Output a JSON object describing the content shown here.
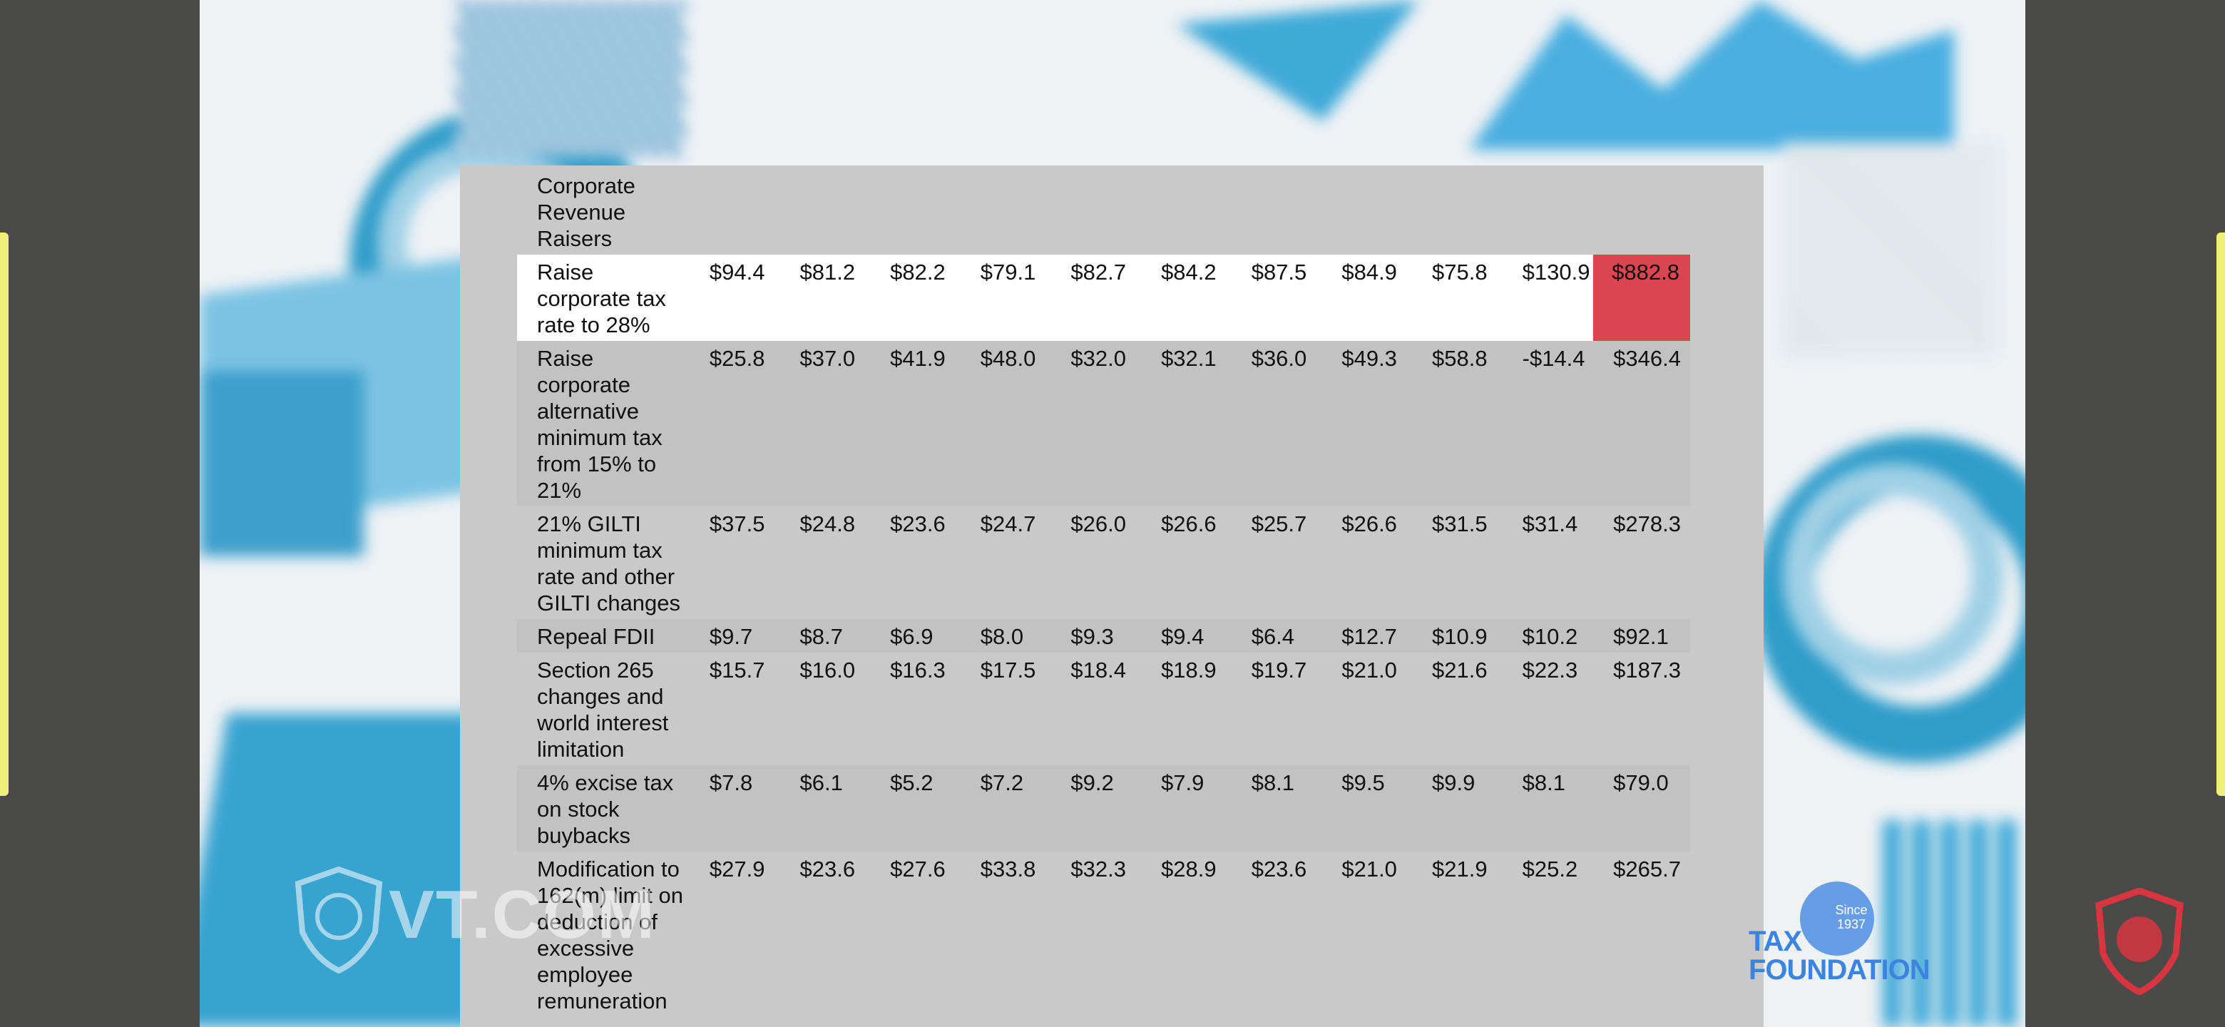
{
  "table": {
    "rows": [
      {
        "label": "Corporate Revenue Raisers",
        "values": [
          "",
          "",
          "",
          "",
          "",
          "",
          "",
          "",
          "",
          "",
          ""
        ]
      },
      {
        "label": "Raise corporate tax rate to 28%",
        "values": [
          "$94.4",
          "$81.2",
          "$82.2",
          "$79.1",
          "$82.7",
          "$84.2",
          "$87.5",
          "$84.9",
          "$75.8",
          "$130.9",
          "$882.8"
        ]
      },
      {
        "label": "Raise corporate alternative minimum tax from 15% to 21%",
        "values": [
          "$25.8",
          "$37.0",
          "$41.9",
          "$48.0",
          "$32.0",
          "$32.1",
          "$36.0",
          "$49.3",
          "$58.8",
          "-$14.4",
          "$346.4"
        ]
      },
      {
        "label": "21% GILTI minimum tax rate and other GILTI changes",
        "values": [
          "$37.5",
          "$24.8",
          "$23.6",
          "$24.7",
          "$26.0",
          "$26.6",
          "$25.7",
          "$26.6",
          "$31.5",
          "$31.4",
          "$278.3"
        ]
      },
      {
        "label": "Repeal FDII",
        "values": [
          "$9.7",
          "$8.7",
          "$6.9",
          "$8.0",
          "$9.3",
          "$9.4",
          "$6.4",
          "$12.7",
          "$10.9",
          "$10.2",
          "$92.1"
        ]
      },
      {
        "label": "Section 265 changes and world interest limitation",
        "values": [
          "$15.7",
          "$16.0",
          "$16.3",
          "$17.5",
          "$18.4",
          "$18.9",
          "$19.7",
          "$21.0",
          "$21.6",
          "$22.3",
          "$187.3"
        ]
      },
      {
        "label": "4% excise tax on stock buybacks",
        "values": [
          "$7.8",
          "$6.1",
          "$5.2",
          "$7.2",
          "$9.2",
          "$7.9",
          "$8.1",
          "$9.5",
          "$9.9",
          "$8.1",
          "$79.0"
        ]
      },
      {
        "label": "Modification to 162(m) limit on deduction of excessive employee remuneration",
        "values": [
          "$27.9",
          "$23.6",
          "$27.6",
          "$33.8",
          "$32.3",
          "$28.9",
          "$23.6",
          "$21.0",
          "$21.9",
          "$25.2",
          "$265.7"
        ]
      }
    ],
    "highlight_color": "#d9464f"
  },
  "watermarks": {
    "vt_text": "VT.COM",
    "tax_foundation_line1": "TAX",
    "tax_foundation_line2": "FOUNDATION",
    "since_line1": "Since",
    "since_line2": "1937"
  },
  "icons": [
    "lion-shield-icon",
    "capitol-dome-icon",
    "lion-badge-icon"
  ]
}
